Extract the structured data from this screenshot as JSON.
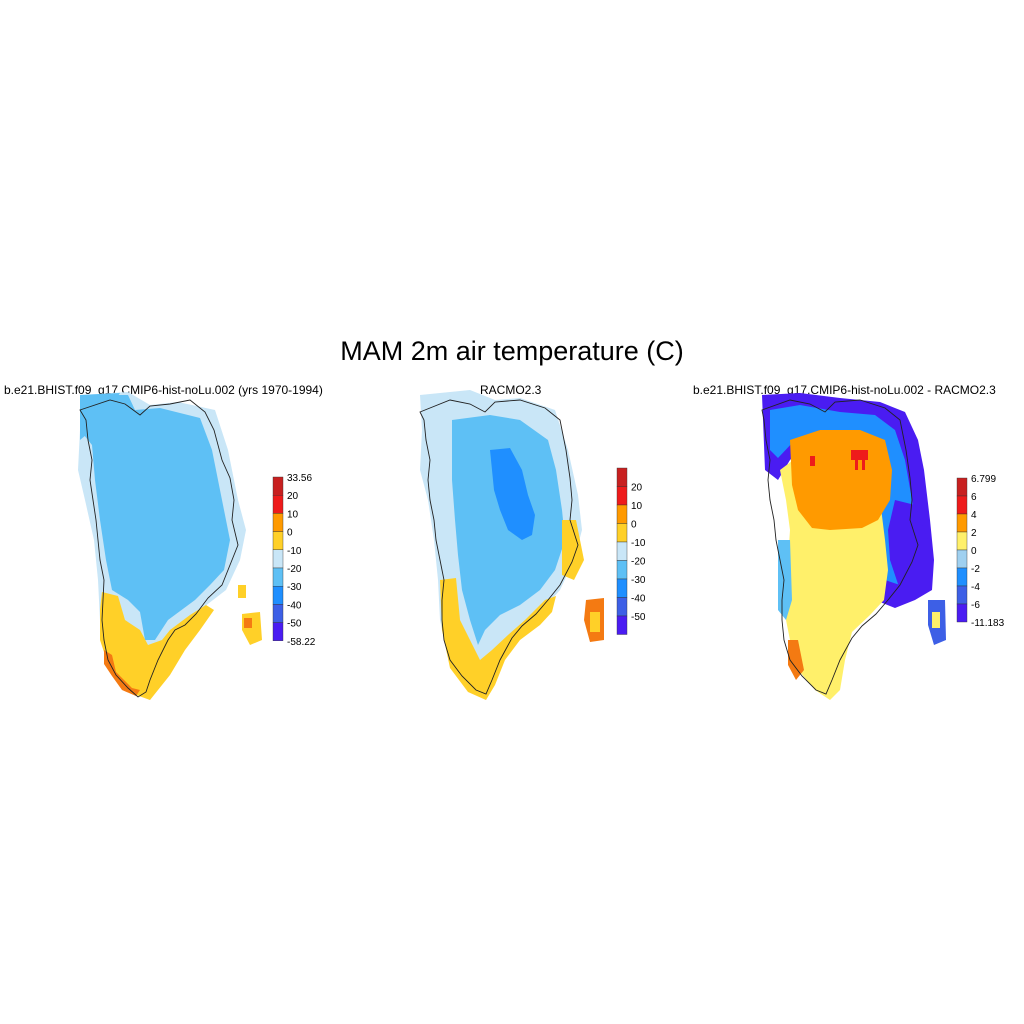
{
  "figure_title": "MAM 2m air temperature (C)",
  "palette": {
    "darkred": "#c82020",
    "red": "#ee1b1b",
    "orange": "#ff9a00",
    "gold": "#ffd028",
    "yellow": "#fff06a",
    "paleblue": "#c9e6f7",
    "skyblue": "#5ec0f5",
    "blue": "#1f8fff",
    "royal": "#3d5fe6",
    "violet": "#4a1cf2",
    "outline": "#222222"
  },
  "panels": [
    {
      "title": "b.e21.BHIST.f09_g17.CMIP6-hist-noLu.002 (yrs 1970-1994)",
      "colorbar": {
        "labels": [
          "33.56",
          "20",
          "10",
          "0",
          "-10",
          "-20",
          "-30",
          "-40",
          "-50",
          "-58.22"
        ],
        "colors": [
          "#c82020",
          "#ee1b1b",
          "#ff9a00",
          "#ffd028",
          "#c9e6f7",
          "#5ec0f5",
          "#1f8fff",
          "#3d5fe6",
          "#4a1cf2"
        ]
      }
    },
    {
      "title": "RACMO2.3",
      "colorbar": {
        "labels": [
          "20",
          "10",
          "0",
          "-10",
          "-20",
          "-30",
          "-40",
          "-50"
        ],
        "colors": [
          "#c82020",
          "#ee1b1b",
          "#ff9a00",
          "#ffd028",
          "#c9e6f7",
          "#5ec0f5",
          "#1f8fff",
          "#3d5fe6",
          "#4a1cf2"
        ]
      }
    },
    {
      "title": "b.e21.BHIST.f09_g17.CMIP6-hist-noLu.002 - RACMO2.3",
      "colorbar": {
        "labels": [
          "6.799",
          "6",
          "4",
          "2",
          "0",
          "-2",
          "-4",
          "-6",
          "-11.183"
        ],
        "colors": [
          "#c82020",
          "#ee1b1b",
          "#ff9a00",
          "#fff06a",
          "#9fd0f0",
          "#1f8fff",
          "#3d5fe6",
          "#4a1cf2"
        ]
      }
    }
  ]
}
